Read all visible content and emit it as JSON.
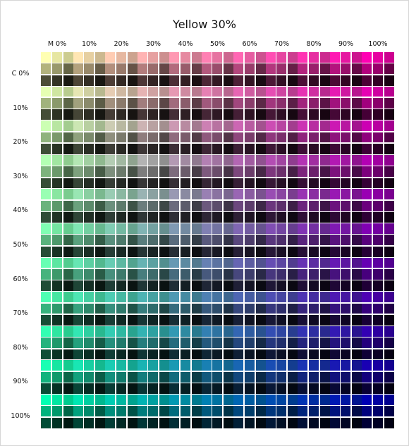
{
  "chart": {
    "title": "Yellow 30%",
    "magenta_labels": [
      "M 0%",
      "10%",
      "20%",
      "30%",
      "40%",
      "50%",
      "60%",
      "70%",
      "80%",
      "90%",
      "100%"
    ],
    "cyan_labels": [
      "C 0%",
      "10%",
      "20%",
      "30%",
      "40%",
      "50%",
      "60%",
      "70%",
      "80%",
      "90%",
      "100%"
    ],
    "yellow_percent": 30,
    "swatches_per_block": 3,
    "black_levels_percent": [
      0,
      10,
      20,
      30,
      40,
      50,
      60,
      70,
      80,
      90,
      100
    ]
  }
}
